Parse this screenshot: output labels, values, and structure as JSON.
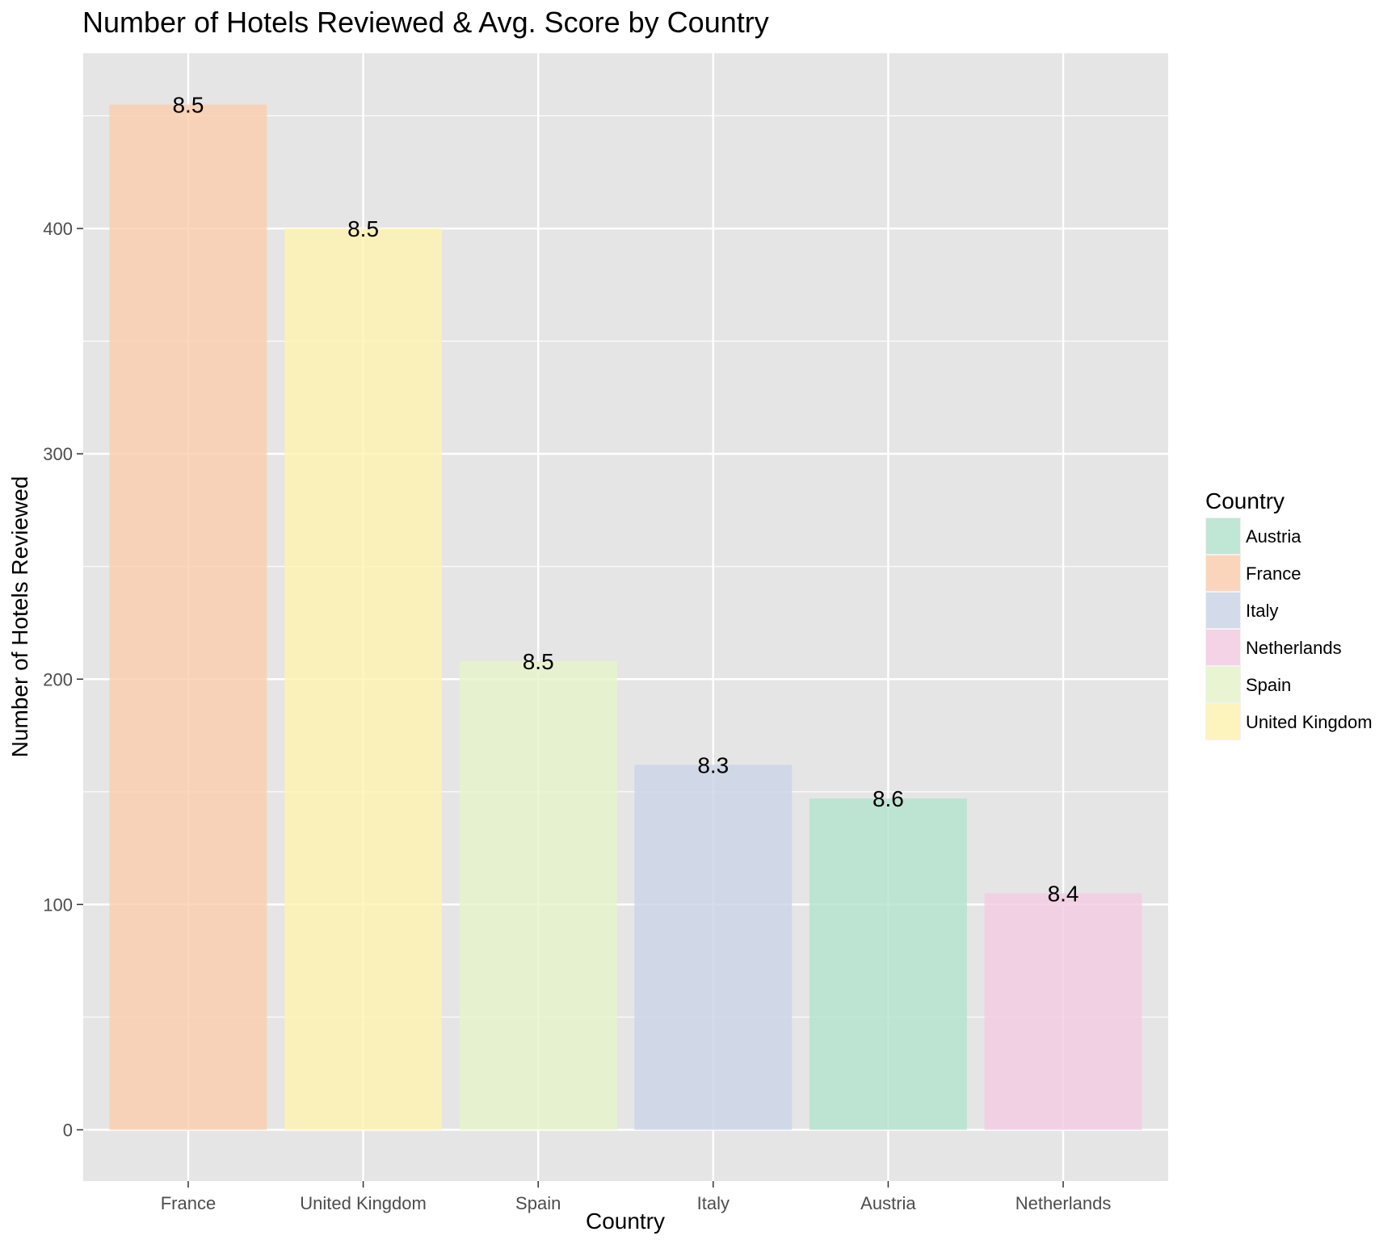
{
  "chart_data": {
    "type": "bar",
    "title": "Number of Hotels Reviewed & Avg. Score by Country",
    "xlabel": "Country",
    "ylabel": "Number of Hotels Reviewed",
    "categories": [
      "France",
      "United Kingdom",
      "Spain",
      "Italy",
      "Austria",
      "Netherlands"
    ],
    "values": [
      455,
      400,
      208,
      162,
      147,
      105
    ],
    "bar_labels": [
      "8.5",
      "8.5",
      "8.5",
      "8.3",
      "8.6",
      "8.4"
    ],
    "ylim": [
      -22.75,
      477.75
    ],
    "yticks": [
      0,
      100,
      200,
      300,
      400
    ],
    "grid": true,
    "legend": {
      "title": "Country",
      "position": "right",
      "entries": [
        {
          "label": "Austria",
          "color": "#b3e2cd"
        },
        {
          "label": "France",
          "color": "#fdcdac"
        },
        {
          "label": "Italy",
          "color": "#cbd5e8"
        },
        {
          "label": "Netherlands",
          "color": "#f4cae4"
        },
        {
          "label": "Spain",
          "color": "#e6f5c9"
        },
        {
          "label": "United Kingdom",
          "color": "#fff2ae"
        }
      ]
    },
    "colors": {
      "France": "#fdcdac",
      "United Kingdom": "#fff2ae",
      "Spain": "#e6f5c9",
      "Italy": "#cbd5e8",
      "Austria": "#b3e2cd",
      "Netherlands": "#f4cae4",
      "panel_background": "#e5e5e5",
      "grid": "#ffffff"
    }
  }
}
